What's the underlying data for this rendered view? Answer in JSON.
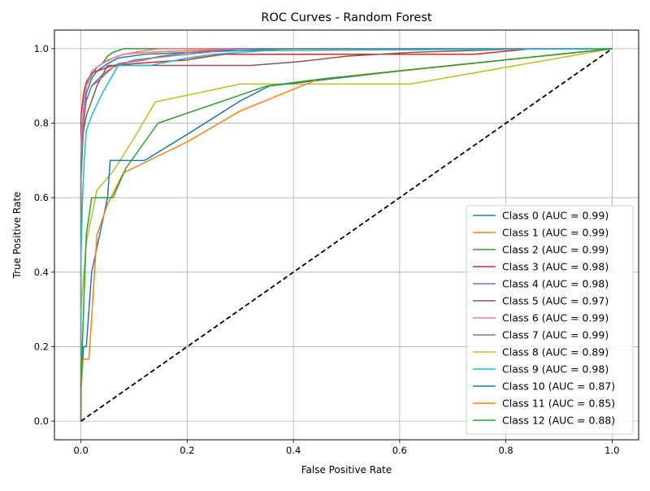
{
  "chart_data": {
    "type": "line",
    "title": "ROC Curves - Random Forest",
    "xlabel": "False Positive Rate",
    "ylabel": "True Positive Rate",
    "xlim": [
      -0.05,
      1.05
    ],
    "ylim": [
      -0.05,
      1.05
    ],
    "xticks": [
      "0.0",
      "0.2",
      "0.4",
      "0.6",
      "0.8",
      "1.0"
    ],
    "yticks": [
      "0.0",
      "0.2",
      "0.4",
      "0.6",
      "0.8",
      "1.0"
    ],
    "grid": true,
    "legend_position": "lower-right",
    "diagonal": {
      "x": [
        0,
        1
      ],
      "y": [
        0,
        1
      ],
      "color": "#000000",
      "style": "dashed"
    },
    "series": [
      {
        "name": "Class 0 (AUC = 0.99)",
        "color": "#1f77b4",
        "x": [
          0,
          0,
          0.005,
          0.01,
          0.02,
          0.03,
          0.05,
          0.07,
          0.12,
          0.2,
          0.3,
          0.4,
          1.0
        ],
        "y": [
          0,
          0.65,
          0.8,
          0.88,
          0.92,
          0.94,
          0.96,
          0.975,
          0.985,
          0.99,
          0.995,
          1.0,
          1.0
        ]
      },
      {
        "name": "Class 1 (AUC = 0.99)",
        "color": "#ff7f0e",
        "x": [
          0,
          0,
          0.005,
          0.01,
          0.02,
          0.03,
          0.05,
          0.08,
          0.12,
          0.2,
          0.3,
          1.0
        ],
        "y": [
          0,
          0.7,
          0.85,
          0.9,
          0.93,
          0.95,
          0.97,
          0.985,
          0.99,
          0.995,
          1.0,
          1.0
        ]
      },
      {
        "name": "Class 2 (AUC = 0.99)",
        "color": "#2ca02c",
        "x": [
          0,
          0,
          0.005,
          0.01,
          0.02,
          0.03,
          0.04,
          0.05,
          0.06,
          0.08,
          0.15,
          1.0
        ],
        "y": [
          0,
          0.7,
          0.85,
          0.9,
          0.93,
          0.95,
          0.96,
          0.98,
          0.99,
          1.0,
          1.0,
          1.0
        ]
      },
      {
        "name": "Class 3 (AUC = 0.98)",
        "color": "#d62728",
        "x": [
          0,
          0,
          0.005,
          0.01,
          0.02,
          0.04,
          0.06,
          0.1,
          0.15,
          0.2,
          0.22,
          0.27,
          0.74,
          0.85,
          1.0
        ],
        "y": [
          0,
          0.82,
          0.88,
          0.91,
          0.935,
          0.945,
          0.955,
          0.96,
          0.965,
          0.97,
          0.975,
          0.985,
          0.985,
          1.0,
          1.0
        ]
      },
      {
        "name": "Class 4 (AUC = 0.98)",
        "color": "#9467bd",
        "x": [
          0,
          0,
          0.005,
          0.01,
          0.02,
          0.04,
          0.07,
          0.12,
          0.15,
          0.2,
          0.3,
          1.0
        ],
        "y": [
          0,
          0.75,
          0.82,
          0.86,
          0.9,
          0.93,
          0.96,
          0.97,
          0.98,
          0.99,
          1.0,
          1.0
        ]
      },
      {
        "name": "Class 5 (AUC = 0.97)",
        "color": "#8c564b",
        "x": [
          0,
          0,
          0.005,
          0.01,
          0.02,
          0.03,
          0.05,
          0.32,
          0.41,
          0.5,
          0.62,
          0.85,
          1.0
        ],
        "y": [
          0,
          0.7,
          0.78,
          0.82,
          0.86,
          0.9,
          0.955,
          0.955,
          0.965,
          0.98,
          0.99,
          1.0,
          1.0
        ]
      },
      {
        "name": "Class 6 (AUC = 0.99)",
        "color": "#e377c2",
        "x": [
          0,
          0,
          0.005,
          0.01,
          0.02,
          0.04,
          0.06,
          0.08,
          0.12,
          0.15,
          1.0
        ],
        "y": [
          0,
          0.75,
          0.85,
          0.9,
          0.94,
          0.96,
          0.975,
          0.985,
          0.995,
          1.0,
          1.0
        ]
      },
      {
        "name": "Class 7 (AUC = 0.99)",
        "color": "#7f7f7f",
        "x": [
          0,
          0,
          0.005,
          0.01,
          0.02,
          0.03,
          0.06,
          0.1,
          0.2,
          0.3,
          1.0
        ],
        "y": [
          0,
          0.7,
          0.8,
          0.86,
          0.9,
          0.91,
          0.95,
          0.97,
          0.985,
          1.0,
          1.0
        ]
      },
      {
        "name": "Class 8 (AUC = 0.89)",
        "color": "#bcbd22",
        "x": [
          0,
          0,
          0.01,
          0.03,
          0.06,
          0.1,
          0.14,
          0.3,
          0.46,
          0.62,
          1.0
        ],
        "y": [
          0,
          0.3,
          0.48,
          0.62,
          0.67,
          0.76,
          0.857,
          0.905,
          0.905,
          0.905,
          1.0
        ]
      },
      {
        "name": "Class 9 (AUC = 0.98)",
        "color": "#17becf",
        "x": [
          0,
          0,
          0.003,
          0.006,
          0.01,
          0.02,
          0.04,
          0.07,
          0.13,
          0.2,
          0.25,
          0.35,
          1.0
        ],
        "y": [
          0,
          0.45,
          0.6,
          0.7,
          0.78,
          0.82,
          0.88,
          0.955,
          0.955,
          0.975,
          0.985,
          0.995,
          1.0
        ]
      },
      {
        "name": "Class 10 (AUC = 0.87)",
        "color": "#1f77b4",
        "x": [
          0,
          0,
          0.005,
          0.01,
          0.02,
          0.035,
          0.05,
          0.055,
          0.12,
          0.2,
          0.3,
          0.355,
          0.6,
          1.0
        ],
        "y": [
          0,
          0.1,
          0.2,
          0.2,
          0.4,
          0.5,
          0.6,
          0.7,
          0.7,
          0.77,
          0.86,
          0.9,
          0.94,
          1.0
        ]
      },
      {
        "name": "Class 11 (AUC = 0.85)",
        "color": "#ff7f0e",
        "x": [
          0,
          0,
          0.004,
          0.015,
          0.03,
          0.05,
          0.08,
          0.2,
          0.3,
          0.445,
          0.6,
          1.0
        ],
        "y": [
          0,
          0.083,
          0.167,
          0.167,
          0.5,
          0.583,
          0.667,
          0.75,
          0.833,
          0.917,
          0.94,
          1.0
        ]
      },
      {
        "name": "Class 12 (AUC = 0.88)",
        "color": "#2ca02c",
        "x": [
          0,
          0,
          0.005,
          0.01,
          0.02,
          0.06,
          0.085,
          0.145,
          0.35,
          0.46,
          1.0
        ],
        "y": [
          0,
          0.1,
          0.3,
          0.5,
          0.6,
          0.6,
          0.68,
          0.8,
          0.9,
          0.92,
          1.0
        ]
      }
    ]
  }
}
